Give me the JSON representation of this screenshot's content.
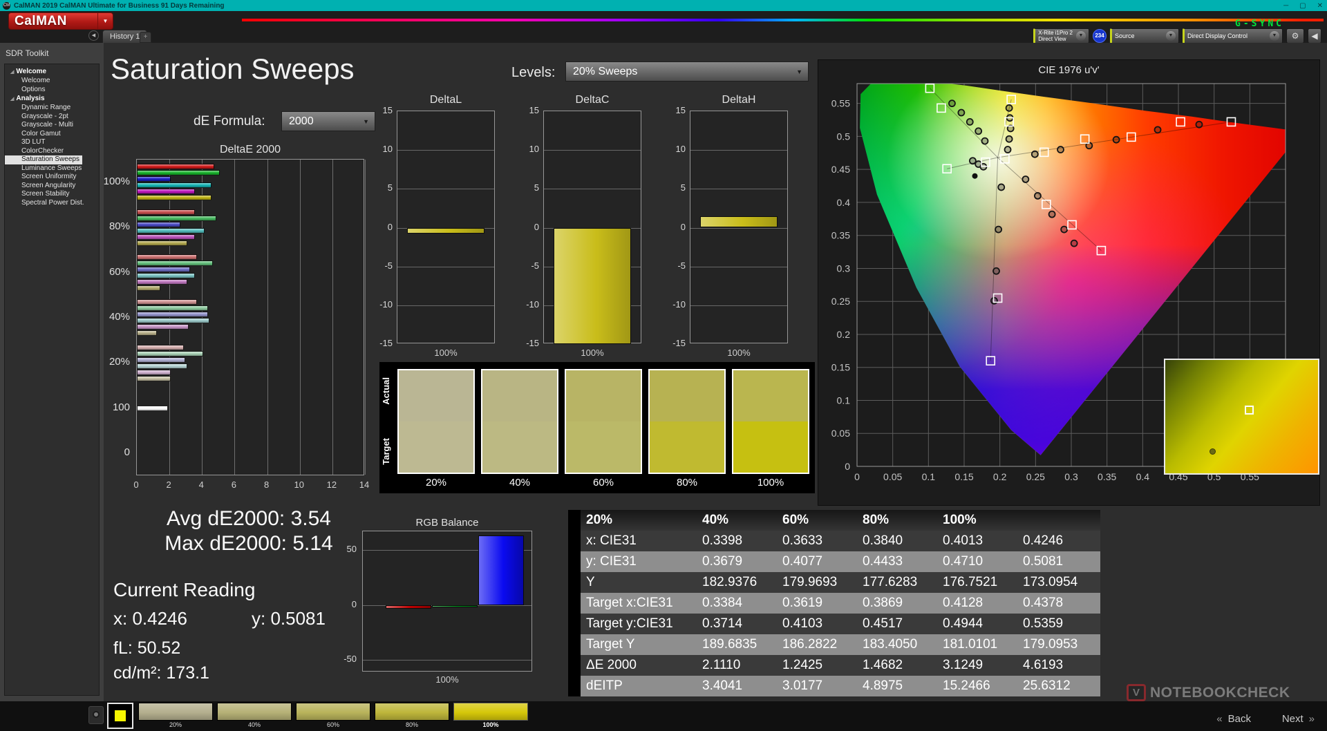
{
  "window": {
    "title": "CalMAN 2019 CalMAN Ultimate for Business 91 Days Remaining",
    "minimize": "─",
    "maximize": "▢",
    "close": "✕",
    "logo_glyph": "CM"
  },
  "brand": {
    "logo_text": "CalMAN",
    "logo_color": "#c01d18",
    "dropdown_arrow": "▼"
  },
  "osd": {
    "gsync": "G-SYNC"
  },
  "tab_bar": {
    "tabs": [
      {
        "label": "History 1"
      }
    ],
    "add_label": "+",
    "collapse_arrow": "◀"
  },
  "top_controls": {
    "meter": {
      "line1": "X-Rite i1Pro 2",
      "line2": "Direct View",
      "badge": "234"
    },
    "source": {
      "label": "Source"
    },
    "display_control": {
      "label": "Direct Display Control"
    }
  },
  "sidebar": {
    "title": "SDR Toolkit",
    "sections": [
      {
        "label": "Welcome",
        "items": [
          "Welcome",
          "Options"
        ]
      },
      {
        "label": "Analysis",
        "items": [
          "Dynamic Range",
          "Grayscale - 2pt",
          "Grayscale - Multi",
          "Color Gamut",
          "3D LUT",
          "ColorChecker",
          "Saturation Sweeps",
          "Luminance Sweeps",
          "Screen Uniformity",
          "Screen Angularity",
          "Screen Stability",
          "Spectral Power Dist."
        ]
      }
    ],
    "selected_item": "Saturation Sweeps"
  },
  "page": {
    "title": "Saturation Sweeps",
    "levels_label": "Levels:",
    "levels_value": "20% Sweeps",
    "de_formula_label": "dE Formula:",
    "de_formula_value": "2000"
  },
  "chart_data": [
    {
      "id": "deltae2000",
      "type": "bar",
      "orientation": "horizontal",
      "title": "DeltaE 2000",
      "xlim": [
        0,
        14
      ],
      "xticks": [
        0,
        2,
        4,
        6,
        8,
        10,
        12,
        14
      ],
      "grid": true,
      "series_legend": [
        "Red",
        "Green",
        "Blue",
        "Cyan",
        "Magenta",
        "Yellow"
      ],
      "groups": [
        {
          "label": "100%",
          "values": [
            4.8,
            5.14,
            2.1,
            4.6,
            3.6,
            4.62
          ],
          "colors": [
            "#d11a1a",
            "#17b32b",
            "#1d1dc4",
            "#14b4b4",
            "#bd17bd",
            "#c0b414"
          ]
        },
        {
          "label": "80%",
          "values": [
            3.6,
            4.9,
            2.7,
            4.2,
            3.6,
            3.12
          ],
          "colors": [
            "#c94f4f",
            "#45b95e",
            "#4949c4",
            "#52bcbc",
            "#bd54bd",
            "#b3a94e"
          ]
        },
        {
          "label": "60%",
          "values": [
            3.7,
            4.7,
            3.3,
            3.6,
            3.1,
            1.47
          ],
          "colors": [
            "#cc6f6f",
            "#63c07b",
            "#6d6dc4",
            "#79c2c2",
            "#c078c0",
            "#b3ab6e"
          ]
        },
        {
          "label": "40%",
          "values": [
            3.7,
            4.4,
            4.4,
            4.5,
            3.2,
            1.24
          ],
          "colors": [
            "#d19292",
            "#8cca9e",
            "#9393cc",
            "#9ccaca",
            "#c795c7",
            "#bab28b"
          ]
        },
        {
          "label": "20%",
          "values": [
            2.9,
            4.1,
            3.0,
            3.1,
            2.1,
            2.11
          ],
          "colors": [
            "#d4adad",
            "#a8d1b5",
            "#b1b1d4",
            "#b5d3d3",
            "#cfb0cf",
            "#c6c0a4"
          ]
        },
        {
          "label": "100",
          "values": [
            1.9
          ],
          "colors": [
            "#ffffff"
          ]
        },
        {
          "label": "0",
          "values": [],
          "colors": []
        }
      ]
    },
    {
      "id": "deltaL",
      "type": "bar",
      "title": "DeltaL",
      "ylim": [
        -15,
        15
      ],
      "yticks": [
        15,
        10,
        5,
        0,
        -5,
        -10,
        -15
      ],
      "categories": [
        "100%"
      ],
      "values": [
        -0.8
      ],
      "xlabel": "100%",
      "bar_color": "#c9bd1a"
    },
    {
      "id": "deltaC",
      "type": "bar",
      "title": "DeltaC",
      "ylim": [
        -15,
        15
      ],
      "yticks": [
        15,
        10,
        5,
        0,
        -5,
        -10,
        -15
      ],
      "categories": [
        "100%"
      ],
      "values": [
        -15
      ],
      "clipped": true,
      "xlabel": "100%",
      "bar_color": "#c9bd1a"
    },
    {
      "id": "deltaH",
      "type": "bar",
      "title": "DeltaH",
      "ylim": [
        -15,
        15
      ],
      "yticks": [
        15,
        10,
        5,
        0,
        -5,
        -10,
        -15
      ],
      "categories": [
        "100%"
      ],
      "values": [
        1.5
      ],
      "xlabel": "100%",
      "bar_color": "#c9bd1a"
    },
    {
      "id": "rgb_balance",
      "type": "bar",
      "title": "RGB Balance",
      "ylim": [
        -61,
        67
      ],
      "yticks": [
        50,
        0,
        -50
      ],
      "categories": [
        "Red",
        "Green",
        "Blue"
      ],
      "values": [
        -3,
        -2,
        63
      ],
      "colors": [
        "#c00000",
        "#00a01e",
        "#0a0af0"
      ],
      "xlabel": "100%"
    },
    {
      "id": "cie1976",
      "type": "scatter",
      "title": "CIE 1976 u'v'",
      "xlim": [
        0,
        0.6
      ],
      "ylim": [
        0,
        0.58
      ],
      "xticks": [
        "0",
        "0.05",
        "0.1",
        "0.15",
        "0.2",
        "0.25",
        "0.3",
        "0.35",
        "0.4",
        "0.45",
        "0.5",
        "0.55"
      ],
      "yticks": [
        "0.55",
        "0.5",
        "0.45",
        "0.4",
        "0.35",
        "0.3",
        "0.25",
        "0.2",
        "0.15",
        "0.1",
        "0.05",
        "0"
      ],
      "white_point": [
        0.197,
        0.468
      ],
      "white_dot": [
        0.165,
        0.44
      ],
      "sweep_endpoints": [
        [
          0.524,
          0.522
        ],
        [
          0.102,
          0.573
        ],
        [
          0.187,
          0.16
        ],
        [
          0.126,
          0.451
        ],
        [
          0.342,
          0.327
        ],
        [
          0.216,
          0.556
        ]
      ],
      "targets": [
        [
          0.102,
          0.573
        ],
        [
          0.118,
          0.543
        ],
        [
          0.216,
          0.556
        ],
        [
          0.213,
          0.522
        ],
        [
          0.126,
          0.451
        ],
        [
          0.18,
          0.461
        ],
        [
          0.207,
          0.466
        ],
        [
          0.262,
          0.476
        ],
        [
          0.319,
          0.496
        ],
        [
          0.384,
          0.499
        ],
        [
          0.453,
          0.522
        ],
        [
          0.524,
          0.522
        ],
        [
          0.265,
          0.397
        ],
        [
          0.301,
          0.366
        ],
        [
          0.342,
          0.327
        ],
        [
          0.197,
          0.255
        ],
        [
          0.187,
          0.16
        ]
      ],
      "measurements": [
        [
          0.133,
          0.55
        ],
        [
          0.146,
          0.536
        ],
        [
          0.158,
          0.522
        ],
        [
          0.17,
          0.508
        ],
        [
          0.179,
          0.493
        ],
        [
          0.213,
          0.543
        ],
        [
          0.214,
          0.528
        ],
        [
          0.215,
          0.512
        ],
        [
          0.213,
          0.496
        ],
        [
          0.211,
          0.48
        ],
        [
          0.249,
          0.473
        ],
        [
          0.285,
          0.48
        ],
        [
          0.325,
          0.486
        ],
        [
          0.363,
          0.495
        ],
        [
          0.421,
          0.51
        ],
        [
          0.479,
          0.518
        ],
        [
          0.236,
          0.435
        ],
        [
          0.253,
          0.41
        ],
        [
          0.273,
          0.382
        ],
        [
          0.29,
          0.359
        ],
        [
          0.304,
          0.338
        ],
        [
          0.162,
          0.463
        ],
        [
          0.17,
          0.458
        ],
        [
          0.177,
          0.454
        ],
        [
          0.202,
          0.423
        ],
        [
          0.198,
          0.359
        ],
        [
          0.195,
          0.296
        ],
        [
          0.192,
          0.251
        ]
      ]
    }
  ],
  "swatches": {
    "actual_label": "Actual",
    "target_label": "Target",
    "items": [
      {
        "label": "20%",
        "actual": "#bab694",
        "target": "#bdb992"
      },
      {
        "label": "40%",
        "actual": "#b9b584",
        "target": "#bcb983"
      },
      {
        "label": "60%",
        "actual": "#b8b465",
        "target": "#bbb968"
      },
      {
        "label": "80%",
        "actual": "#b7b252",
        "target": "#c0ba30"
      },
      {
        "label": "100%",
        "actual": "#bab64f",
        "target": "#c6c011"
      }
    ]
  },
  "summary": {
    "avg_line": "Avg dE2000: 3.54",
    "max_line": "Max dE2000: 5.14",
    "current_label": "Current Reading",
    "x_line": "x: 0.4246",
    "y_line": "y: 0.5081",
    "fl_line": "fL: 50.52",
    "cdm2_line": "cd/m²: 173.1"
  },
  "table": {
    "columns": [
      "",
      "20%",
      "40%",
      "60%",
      "80%",
      "100%"
    ],
    "rows": [
      {
        "label": "x: CIE31",
        "values": [
          "0.3398",
          "0.3633",
          "0.3840",
          "0.4013",
          "0.4246"
        ]
      },
      {
        "label": "y: CIE31",
        "values": [
          "0.3679",
          "0.4077",
          "0.4433",
          "0.4710",
          "0.5081"
        ]
      },
      {
        "label": "Y",
        "values": [
          "182.9376",
          "179.9693",
          "177.6283",
          "176.7521",
          "173.0954"
        ]
      },
      {
        "label": "Target x:CIE31",
        "values": [
          "0.3384",
          "0.3619",
          "0.3869",
          "0.4128",
          "0.4378"
        ]
      },
      {
        "label": "Target y:CIE31",
        "values": [
          "0.3714",
          "0.4103",
          "0.4517",
          "0.4944",
          "0.5359"
        ]
      },
      {
        "label": "Target Y",
        "values": [
          "189.6835",
          "186.2822",
          "183.4050",
          "181.0101",
          "179.0953"
        ]
      },
      {
        "label": "ΔE 2000",
        "values": [
          "2.1110",
          "1.2425",
          "1.4682",
          "3.1249",
          "4.6193"
        ]
      },
      {
        "label": "dEITP",
        "values": [
          "3.4041",
          "3.0177",
          "4.8975",
          "15.2466",
          "25.6312"
        ]
      }
    ]
  },
  "bottom_bar": {
    "patches": [
      {
        "label": "20%",
        "color": "#b4af8e"
      },
      {
        "label": "40%",
        "color": "#b6b176"
      },
      {
        "label": "60%",
        "color": "#b9b35b"
      },
      {
        "label": "80%",
        "color": "#beb63b"
      },
      {
        "label": "100%",
        "color": "#d6c70a",
        "selected": true
      }
    ],
    "current_patch_color": "#f6f600",
    "back_label": "Back",
    "next_label": "Next"
  },
  "watermark": {
    "logo_glyph": "V",
    "text": "NOTEBOOKCHECK"
  }
}
